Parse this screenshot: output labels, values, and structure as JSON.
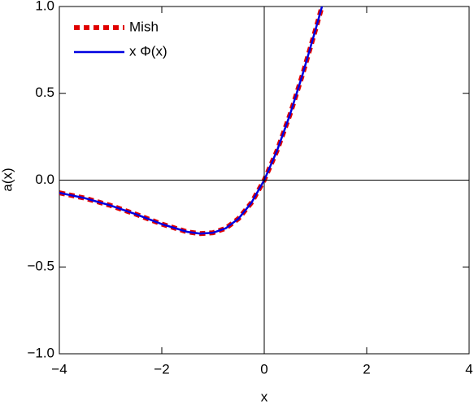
{
  "chart_data": {
    "type": "line",
    "xlabel": "x",
    "ylabel": "a(x)",
    "x": [
      -4,
      -3.5,
      -3,
      -2.5,
      -2,
      -1.5,
      -1.25,
      -1,
      -0.75,
      -0.5,
      -0.25,
      0,
      0.25,
      0.5,
      0.75,
      1,
      1.1,
      1.15
    ],
    "series": [
      {
        "name": "Mish",
        "color": "#e00000",
        "dashed": true,
        "values": [
          -0.073,
          -0.104,
          -0.146,
          -0.197,
          -0.253,
          -0.298,
          -0.308,
          -0.303,
          -0.277,
          -0.221,
          -0.13,
          0,
          0.17,
          0.375,
          0.61,
          0.865,
          0.971,
          1.024
        ]
      },
      {
        "name": "x Φ(x)",
        "color": "#0000e0",
        "dashed": false,
        "values": [
          -0.073,
          -0.104,
          -0.146,
          -0.197,
          -0.253,
          -0.298,
          -0.308,
          -0.303,
          -0.277,
          -0.221,
          -0.13,
          0,
          0.17,
          0.375,
          0.61,
          0.865,
          0.971,
          1.024
        ]
      }
    ],
    "xlim": [
      -4,
      4
    ],
    "ylim": [
      -1,
      1
    ],
    "xticks": [
      {
        "value": -4,
        "label": "−4"
      },
      {
        "value": -2,
        "label": "−2"
      },
      0,
      2,
      4
    ],
    "yticks": [
      {
        "value": -1,
        "label": "−1.0"
      },
      {
        "value": -0.5,
        "label": "−0.5"
      },
      {
        "value": 0,
        "label": "0.0"
      },
      {
        "value": 0.5,
        "label": "0.5"
      },
      {
        "value": 1,
        "label": "1.0"
      }
    ],
    "legend": "upper left"
  }
}
